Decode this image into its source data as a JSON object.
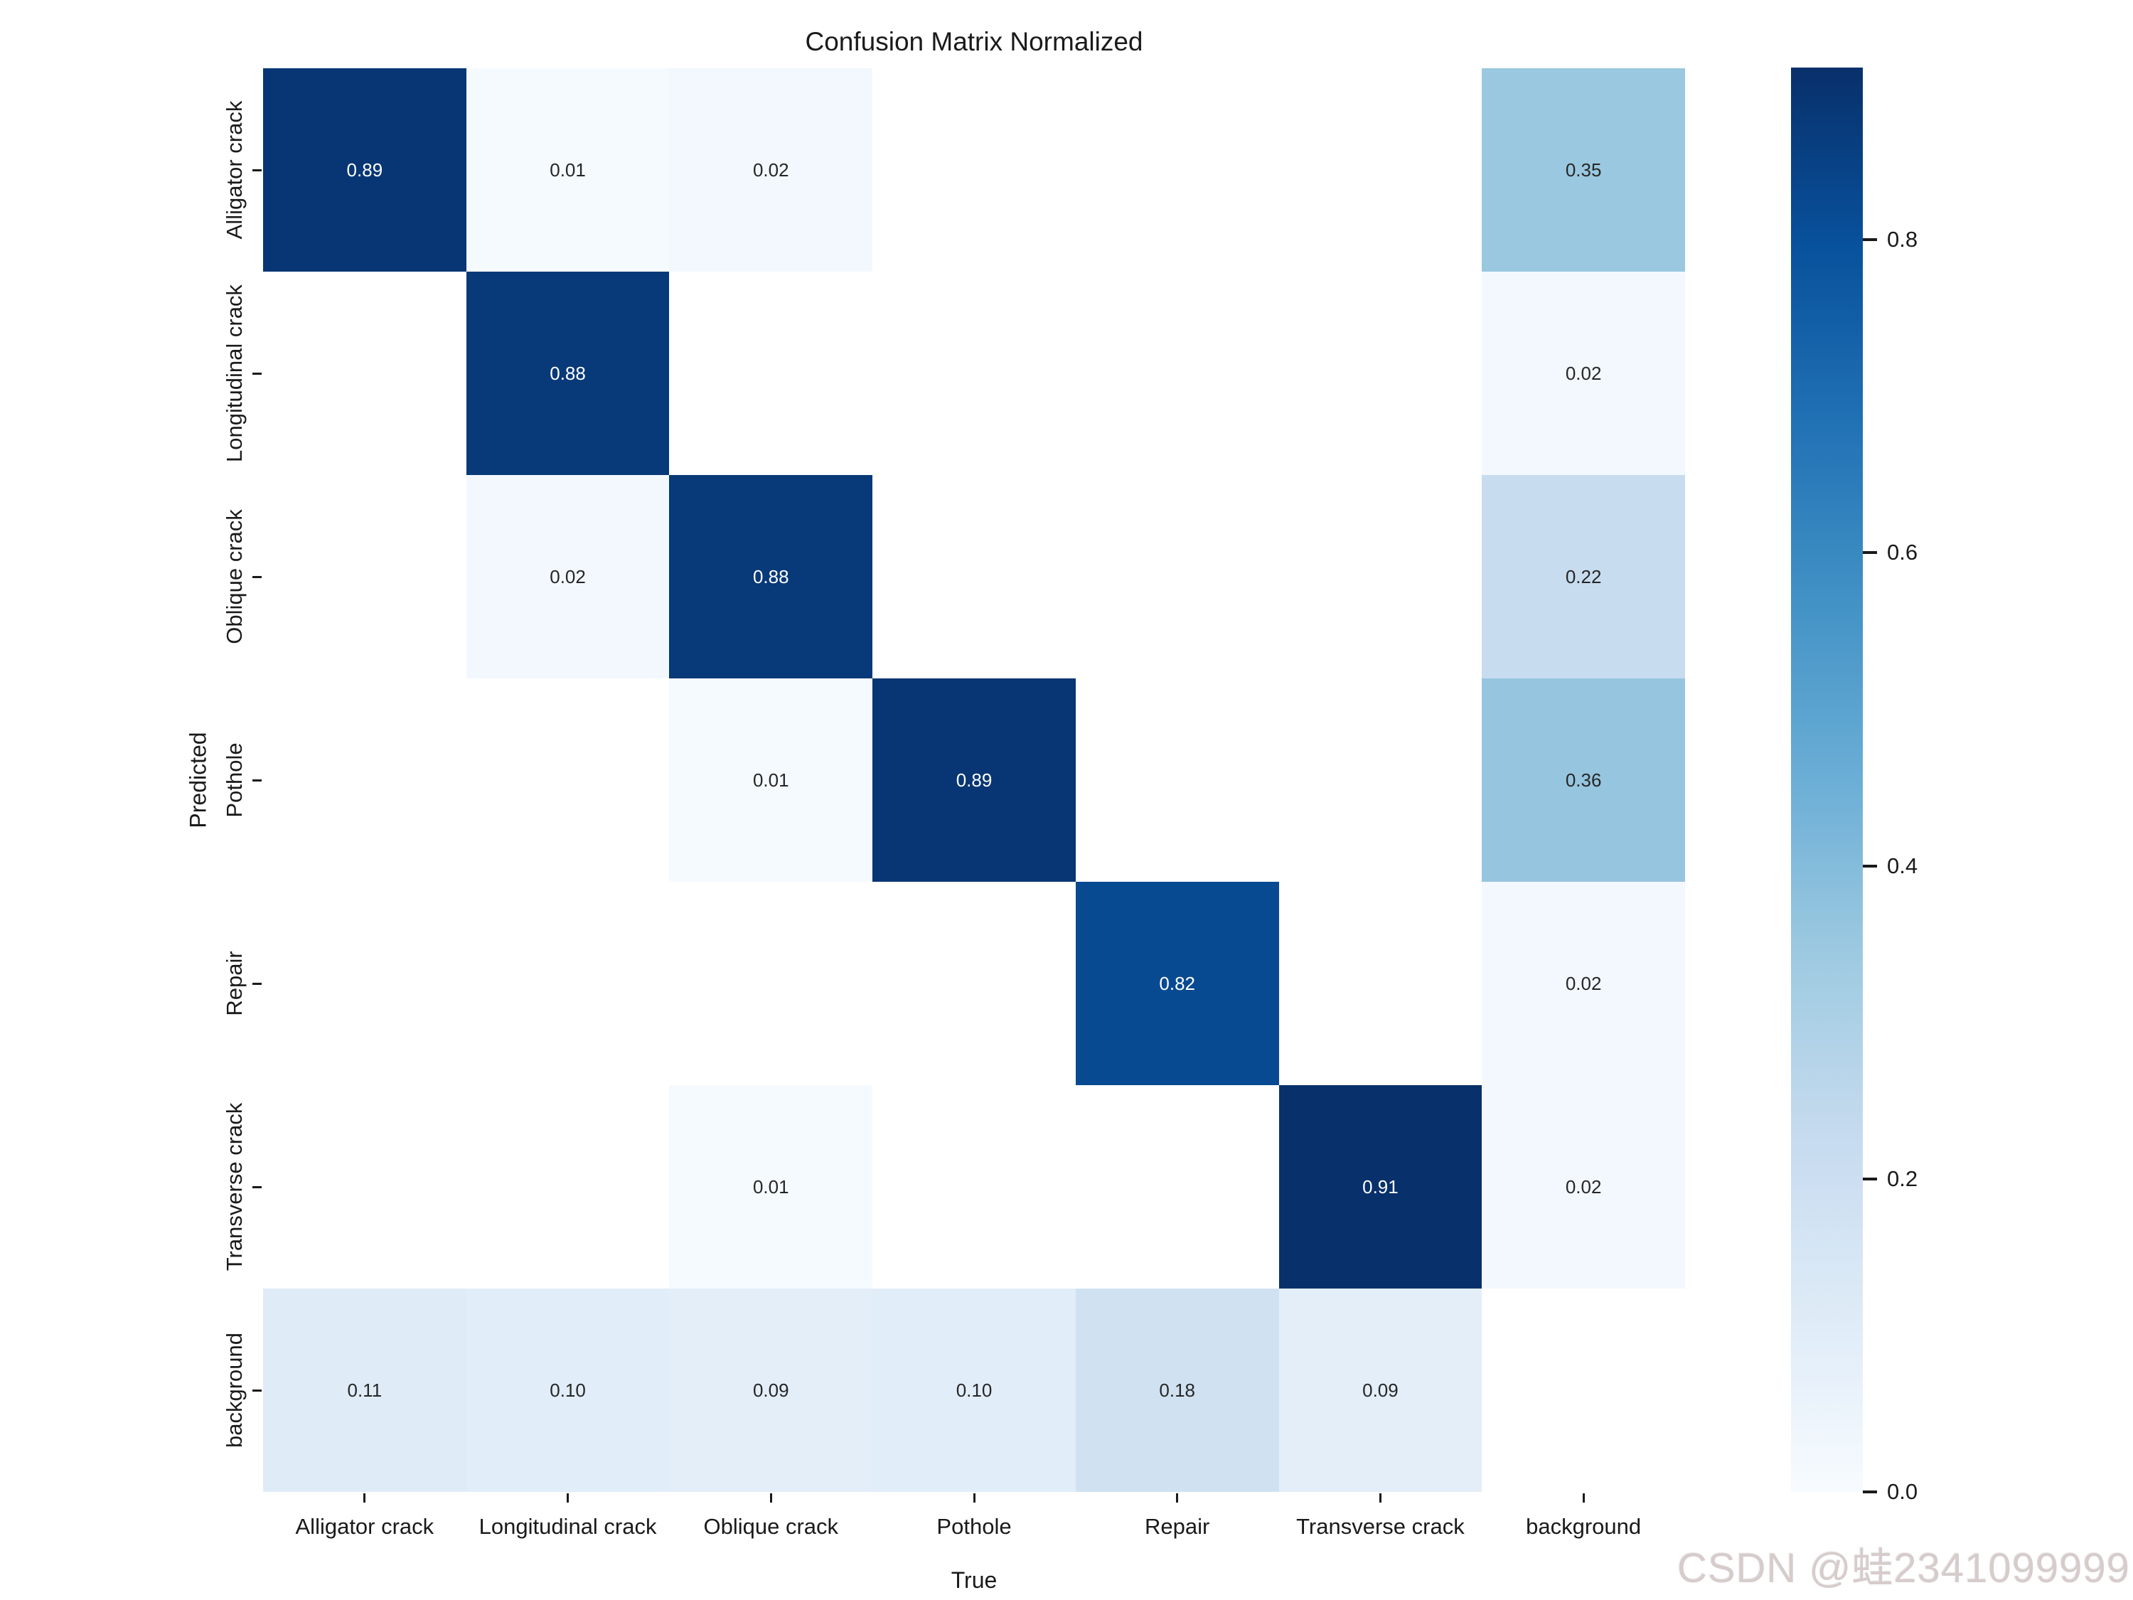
{
  "title": "Confusion Matrix Normalized",
  "axes": {
    "x_label": "True",
    "y_label": "Predicted"
  },
  "watermark": "CSDN @蛙2341099999",
  "chart_data": {
    "type": "heatmap",
    "title": "Confusion Matrix Normalized",
    "xlabel": "True",
    "ylabel": "Predicted",
    "categories": [
      "Alligator crack",
      "Longitudinal crack",
      "Oblique crack",
      "Pothole",
      "Repair",
      "Transverse crack",
      "background"
    ],
    "rows_are": "Predicted",
    "cols_are": "True",
    "matrix": [
      [
        0.89,
        0.01,
        0.02,
        null,
        null,
        null,
        0.35
      ],
      [
        null,
        0.88,
        null,
        null,
        null,
        null,
        0.02
      ],
      [
        null,
        0.02,
        0.88,
        null,
        null,
        null,
        0.22
      ],
      [
        null,
        null,
        0.01,
        0.89,
        null,
        null,
        0.36
      ],
      [
        null,
        null,
        null,
        null,
        0.82,
        null,
        0.02
      ],
      [
        null,
        null,
        0.01,
        null,
        null,
        0.91,
        0.02
      ],
      [
        0.11,
        0.1,
        0.09,
        0.1,
        0.18,
        0.09,
        null
      ]
    ],
    "annotation_decimals": 2,
    "colormap": {
      "name": "Blues",
      "vmin": 0.0,
      "vmax": 0.91,
      "anchors": [
        [
          247,
          251,
          255
        ],
        [
          222,
          235,
          247
        ],
        [
          198,
          219,
          239
        ],
        [
          158,
          202,
          225
        ],
        [
          107,
          174,
          214
        ],
        [
          66,
          146,
          198
        ],
        [
          33,
          113,
          181
        ],
        [
          8,
          81,
          156
        ],
        [
          8,
          48,
          107
        ]
      ],
      "masked_color": "#ffffff",
      "annot_dark_text": "#262626",
      "annot_light_text": "#ffffff"
    },
    "colorbar": {
      "tick_labels": [
        "0.0",
        "0.2",
        "0.4",
        "0.6",
        "0.8"
      ],
      "position": "right"
    },
    "grid": false,
    "legend": false
  }
}
